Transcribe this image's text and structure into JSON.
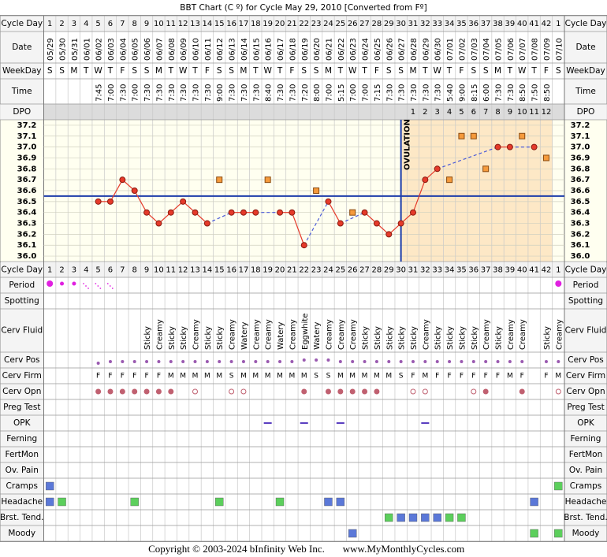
{
  "title": "BBT Chart (C º) for Cycle May 29, 2010  [Converted from Fº]",
  "row_labels": {
    "cycle_day": "Cycle Day",
    "date": "Date",
    "weekday": "WeekDay",
    "time": "Time",
    "dpo": "DPO",
    "period": "Period",
    "spotting": "Spotting",
    "cerv_fluid": "Cerv Fluid",
    "cerv_pos": "Cerv Pos",
    "cerv_firm": "Cerv Firm",
    "cerv_opn": "Cerv Opn",
    "preg_test": "Preg Test",
    "opk": "OPK",
    "ferning": "Ferning",
    "fertmon": "FertMon",
    "ov_pain": "Ov. Pain",
    "cramps": "Cramps",
    "headache": "Headache",
    "brst_tend": "Brst. Tend.",
    "moody": "Moody"
  },
  "cycle_days": [
    1,
    2,
    3,
    4,
    5,
    6,
    7,
    8,
    9,
    10,
    11,
    12,
    13,
    14,
    15,
    16,
    17,
    18,
    19,
    20,
    21,
    22,
    23,
    24,
    25,
    26,
    27,
    28,
    29,
    30,
    31,
    32,
    33,
    34,
    35,
    36,
    37,
    38,
    39,
    40,
    41,
    42,
    1
  ],
  "dates": [
    "05/29",
    "05/30",
    "05/31",
    "06/01",
    "06/02",
    "06/03",
    "06/04",
    "06/05",
    "06/06",
    "06/07",
    "06/08",
    "06/09",
    "06/10",
    "06/11",
    "06/12",
    "06/13",
    "06/14",
    "06/15",
    "06/16",
    "06/17",
    "06/18",
    "06/19",
    "06/20",
    "06/21",
    "06/22",
    "06/23",
    "06/24",
    "06/25",
    "06/26",
    "06/27",
    "06/28",
    "06/29",
    "06/30",
    "07/01",
    "07/02",
    "07/03",
    "07/04",
    "07/05",
    "07/06",
    "07/07",
    "07/08",
    "07/09",
    "07/10"
  ],
  "weekdays": [
    "S",
    "S",
    "M",
    "T",
    "W",
    "T",
    "F",
    "S",
    "S",
    "M",
    "T",
    "W",
    "T",
    "F",
    "S",
    "S",
    "M",
    "T",
    "W",
    "T",
    "F",
    "S",
    "S",
    "M",
    "T",
    "W",
    "T",
    "F",
    "S",
    "S",
    "M",
    "T",
    "W",
    "T",
    "F",
    "S",
    "S",
    "M",
    "T",
    "W",
    "T",
    "F",
    "S"
  ],
  "times": [
    null,
    null,
    null,
    null,
    "7:45",
    "7:00",
    "7:30",
    "7:00",
    "7:30",
    "7:30",
    "7:30",
    "7:30",
    "7:30",
    "7:30",
    "9:00",
    "7:30",
    "7:30",
    "7:30",
    "8:40",
    "7:30",
    "7:30",
    "7:20",
    "8:00",
    "7:00",
    "5:15",
    "7:00",
    "7:00",
    "7:15",
    "7:30",
    "7:30",
    "7:30",
    "7:30",
    "7:30",
    "5:40",
    "9:00",
    "8:15",
    "6:00",
    "7:30",
    "7:30",
    "8:50",
    "7:50",
    "8:50",
    null
  ],
  "dpo": [
    null,
    null,
    null,
    null,
    null,
    null,
    null,
    null,
    null,
    null,
    null,
    null,
    null,
    null,
    null,
    null,
    null,
    null,
    null,
    null,
    null,
    null,
    null,
    null,
    null,
    null,
    null,
    null,
    null,
    null,
    1,
    2,
    3,
    4,
    5,
    6,
    7,
    8,
    9,
    10,
    11,
    12,
    null
  ],
  "chart_data": {
    "type": "line",
    "ylim": [
      35.95,
      37.25
    ],
    "yticks": [
      37.2,
      37.1,
      {
        "value": 37.0,
        "label": "37.0"
      },
      36.9,
      36.8,
      36.7,
      36.6,
      36.5,
      36.4,
      36.3,
      36.2,
      36.1,
      {
        "value": 36.0,
        "label": "36.0"
      }
    ],
    "values": [
      null,
      null,
      null,
      null,
      36.5,
      36.5,
      36.7,
      36.6,
      36.4,
      36.3,
      36.4,
      36.5,
      36.4,
      36.3,
      null,
      36.4,
      36.4,
      36.4,
      null,
      36.4,
      36.4,
      36.1,
      null,
      36.5,
      36.3,
      null,
      36.4,
      36.3,
      36.2,
      36.3,
      36.4,
      36.7,
      36.8,
      null,
      null,
      null,
      null,
      37.0,
      37.0,
      null,
      37.0,
      null,
      null
    ],
    "excluded_values": [
      null,
      null,
      null,
      null,
      null,
      null,
      null,
      null,
      null,
      null,
      null,
      null,
      null,
      null,
      36.7,
      null,
      null,
      null,
      36.7,
      null,
      null,
      null,
      36.6,
      null,
      null,
      36.4,
      null,
      null,
      null,
      null,
      null,
      null,
      null,
      36.7,
      37.1,
      37.1,
      36.8,
      null,
      null,
      37.1,
      null,
      36.9,
      null
    ],
    "color": "#e53a2a",
    "excluded_color": "#f59a3c",
    "coverline": 36.55,
    "coverline_color": "#1c3caa",
    "ovulation_day": 30,
    "ovulation_label": "OVULATION",
    "grid": true
  },
  "period": [
    4,
    2,
    2,
    1,
    1,
    1,
    null,
    null,
    null,
    null,
    null,
    null,
    null,
    null,
    null,
    null,
    null,
    null,
    null,
    null,
    null,
    null,
    null,
    null,
    null,
    null,
    null,
    null,
    null,
    null,
    null,
    null,
    null,
    null,
    null,
    null,
    null,
    null,
    null,
    null,
    null,
    null,
    4
  ],
  "cerv_fluid": [
    null,
    null,
    null,
    null,
    null,
    null,
    null,
    null,
    "Sticky",
    "Creamy",
    "Sticky",
    "Sticky",
    "Creamy",
    "Sticky",
    "Sticky",
    "Creamy",
    "Watery",
    "Creamy",
    "Creamy",
    "Watery",
    "Creamy",
    "Eggwhite",
    "Watery",
    "Creamy",
    "Creamy",
    "Creamy",
    "Sticky",
    "Sticky",
    "Sticky",
    "Sticky",
    "Sticky",
    "Creamy",
    "Sticky",
    "Sticky",
    "Sticky",
    "Sticky",
    "Creamy",
    "Sticky",
    "Creamy",
    "Creamy",
    null,
    "Sticky",
    "Creamy"
  ],
  "cerv_pos": [
    null,
    null,
    null,
    null,
    1,
    2,
    2,
    2,
    2,
    2,
    2,
    2,
    2,
    2,
    2,
    2,
    2,
    2,
    2,
    2,
    2,
    3,
    3,
    3,
    2,
    2,
    2,
    2,
    2,
    2,
    2,
    2,
    2,
    2,
    2,
    2,
    2,
    2,
    2,
    2,
    null,
    2,
    2
  ],
  "cerv_firm": [
    null,
    null,
    null,
    null,
    "F",
    "F",
    "F",
    "F",
    "F",
    "F",
    "M",
    "M",
    "M",
    "M",
    "M",
    "S",
    "M",
    "M",
    "M",
    "M",
    "M",
    "M",
    "S",
    "S",
    "M",
    "M",
    "M",
    "M",
    "M",
    "S",
    "F",
    "M",
    "F",
    "F",
    "F",
    "F",
    "F",
    "F",
    "M",
    "F",
    null,
    "F",
    "M"
  ],
  "cerv_opn": [
    null,
    null,
    null,
    null,
    "filled",
    "filled",
    "filled",
    "filled",
    "filled",
    "filled",
    "filled",
    null,
    "hollow",
    null,
    null,
    "hollow",
    "hollow",
    null,
    null,
    null,
    null,
    "filled",
    null,
    "filled",
    "filled",
    "filled",
    "filled",
    "filled",
    null,
    null,
    "hollow",
    "hollow",
    null,
    null,
    null,
    "hollow",
    "filled",
    null,
    null,
    "filled",
    null,
    null,
    "hollow"
  ],
  "opk": {
    "days": [
      19,
      22,
      25,
      32
    ],
    "color": "#5a3fc0"
  },
  "cramps": {
    "days": [
      1,
      43
    ],
    "colors": [
      "#5b78d8",
      "#5ccf5c"
    ]
  },
  "headache": {
    "days": [
      1,
      2,
      8,
      15,
      20,
      24,
      25,
      41
    ],
    "colors": [
      "#5b78d8",
      "#5ccf5c",
      "#5ccf5c",
      "#5ccf5c",
      "#5ccf5c",
      "#5b78d8",
      "#5b78d8",
      "#5b78d8"
    ]
  },
  "brst_tend": {
    "days": [
      29,
      30,
      31,
      32,
      33,
      34,
      35
    ],
    "colors": [
      "#5ccf5c",
      "#5b78d8",
      "#5b78d8",
      "#5b78d8",
      "#5b78d8",
      "#5ccf5c",
      "#5ccf5c"
    ]
  },
  "moody": {
    "days": [
      26,
      41,
      43
    ],
    "colors": [
      "#5b78d8",
      "#5ccf5c",
      "#5ccf5c"
    ]
  },
  "copyright": "Copyright © 2003-2024 bInfinity Web Inc.",
  "website": "www.MyMonthlyCycles.com"
}
